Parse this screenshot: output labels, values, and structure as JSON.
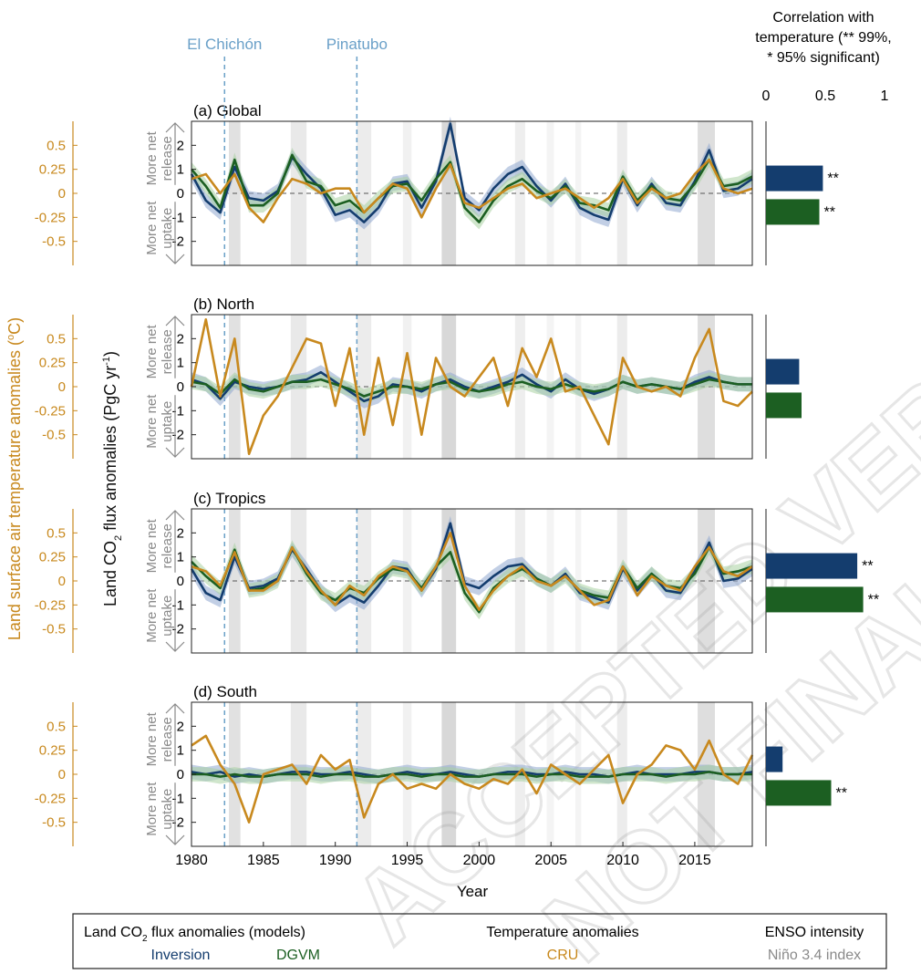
{
  "events": [
    {
      "name": "El Chichón",
      "year": 1982.3
    },
    {
      "name": "Pinatubo",
      "year": 1991.5
    }
  ],
  "watermark": [
    "ACCEPTED VERSION",
    "NOT FINAL"
  ],
  "axes": {
    "left_label": "Land surface air temperature anomalies (°C)",
    "left_label_main": "Land surface air temperature anomalies (",
    "left_label_unit": "C)",
    "left_label_deg": "o",
    "flux_label_a": "Land CO",
    "flux_label_sub": "2",
    "flux_label_b": " flux anomalies (PgC yr",
    "flux_label_sup": "-1",
    "flux_label_c": ")",
    "release_lines": [
      "More net",
      "release"
    ],
    "uptake_lines": [
      "More net",
      "uptake"
    ],
    "xlabel": "Year",
    "x_ticks": [
      1980,
      1985,
      1990,
      1995,
      2000,
      2005,
      2010,
      2015
    ],
    "xlim": [
      1980,
      2019
    ],
    "flux_ylim": [
      -3,
      3
    ],
    "flux_ticks": [
      2,
      1,
      0,
      -1,
      -2
    ],
    "temp_ticks": [
      "0.5",
      "0.25",
      "0",
      "-0.25",
      "-0.5"
    ],
    "temp_tick_values": [
      0.5,
      0.25,
      0,
      -0.25,
      -0.5
    ],
    "temp_ylim": [
      -0.75,
      0.75
    ]
  },
  "correlation": {
    "title_lines": [
      "Correlation with",
      "temperature (** 99%,",
      "* 95% significant)"
    ],
    "ticks": [
      "0",
      "0.5",
      "1"
    ],
    "tick_values": [
      0,
      0.5,
      1
    ],
    "xlim": [
      0,
      1
    ]
  },
  "enso_bands": [
    [
      1982.6,
      1983.4,
      0.55
    ],
    [
      1986.9,
      1988.0,
      0.4
    ],
    [
      1991.5,
      1992.5,
      0.35
    ],
    [
      1994.7,
      1995.3,
      0.25
    ],
    [
      1997.4,
      1998.4,
      0.7
    ],
    [
      2002.5,
      2003.2,
      0.3
    ],
    [
      2004.7,
      2005.2,
      0.2
    ],
    [
      2006.7,
      2007.1,
      0.2
    ],
    [
      2009.6,
      2010.3,
      0.35
    ],
    [
      2015.2,
      2016.4,
      0.6
    ]
  ],
  "chart_data": [
    {
      "type": "line",
      "panel_label": "(a) Global",
      "x": [
        1980,
        1981,
        1982,
        1983,
        1984,
        1985,
        1986,
        1987,
        1988,
        1989,
        1990,
        1991,
        1992,
        1993,
        1994,
        1995,
        1996,
        1997,
        1998,
        1999,
        2000,
        2001,
        2002,
        2003,
        2004,
        2005,
        2006,
        2007,
        2008,
        2009,
        2010,
        2011,
        2012,
        2013,
        2014,
        2015,
        2016,
        2017,
        2018,
        2019
      ],
      "series": [
        {
          "name": "Inversion",
          "values": [
            0.8,
            -0.3,
            -0.8,
            1.1,
            -0.2,
            -0.3,
            0.1,
            1.5,
            0.8,
            0.2,
            -0.9,
            -0.7,
            -1.2,
            -0.6,
            0.4,
            0.5,
            -0.6,
            0.5,
            2.9,
            -0.2,
            -0.7,
            0.2,
            0.8,
            1.1,
            0.3,
            -0.3,
            0.4,
            -0.6,
            -0.9,
            -1.1,
            0.6,
            -0.5,
            0.4,
            -0.4,
            -0.5,
            0.5,
            1.8,
            0.1,
            0.2,
            0.6
          ]
        },
        {
          "name": "DGVM",
          "values": [
            1.0,
            0.3,
            -0.6,
            1.4,
            -0.5,
            -0.5,
            0.0,
            1.6,
            0.5,
            0.3,
            -0.5,
            -0.3,
            -0.8,
            -0.2,
            0.3,
            0.4,
            -0.3,
            0.6,
            1.3,
            -0.6,
            -1.2,
            -0.3,
            0.3,
            0.6,
            0.1,
            -0.2,
            0.3,
            -0.4,
            -0.5,
            -0.7,
            0.7,
            -0.3,
            0.3,
            -0.2,
            -0.3,
            0.4,
            1.4,
            0.3,
            0.4,
            0.7
          ]
        },
        {
          "name": "CRU",
          "values": [
            0.15,
            0.2,
            0.0,
            0.2,
            -0.15,
            -0.3,
            -0.05,
            0.15,
            0.1,
            0.0,
            0.05,
            0.05,
            -0.2,
            -0.05,
            0.1,
            0.05,
            -0.25,
            0.05,
            0.3,
            -0.1,
            -0.15,
            -0.05,
            0.05,
            0.1,
            -0.05,
            0.0,
            0.05,
            -0.05,
            -0.15,
            -0.05,
            0.15,
            -0.1,
            0.05,
            -0.05,
            0.0,
            0.2,
            0.35,
            0.05,
            0.0,
            0.05
          ]
        }
      ],
      "correlation_values": [
        0.48,
        0.45
      ],
      "correlation_sig": [
        "**",
        "**"
      ]
    },
    {
      "type": "line",
      "panel_label": "(b) North",
      "x": [
        1980,
        1981,
        1982,
        1983,
        1984,
        1985,
        1986,
        1987,
        1988,
        1989,
        1990,
        1991,
        1992,
        1993,
        1994,
        1995,
        1996,
        1997,
        1998,
        1999,
        2000,
        2001,
        2002,
        2003,
        2004,
        2005,
        2006,
        2007,
        2008,
        2009,
        2010,
        2011,
        2012,
        2013,
        2014,
        2015,
        2016,
        2017,
        2018,
        2019
      ],
      "series": [
        {
          "name": "Inversion",
          "values": [
            0.3,
            0.1,
            -0.5,
            0.2,
            0.0,
            -0.1,
            0.0,
            0.2,
            0.3,
            0.6,
            0.2,
            -0.2,
            -0.6,
            -0.4,
            0.1,
            0.0,
            -0.2,
            0.1,
            0.3,
            0.0,
            -0.2,
            0.0,
            0.2,
            0.5,
            0.1,
            -0.2,
            0.3,
            -0.1,
            -0.3,
            -0.1,
            0.2,
            0.0,
            0.1,
            0.0,
            -0.1,
            0.2,
            0.4,
            0.2,
            0.1,
            0.1
          ]
        },
        {
          "name": "DGVM",
          "values": [
            0.2,
            0.1,
            -0.3,
            0.3,
            -0.1,
            -0.2,
            0.0,
            0.2,
            0.2,
            0.3,
            0.1,
            -0.1,
            -0.4,
            -0.2,
            0.0,
            0.0,
            -0.1,
            0.1,
            0.2,
            -0.1,
            -0.2,
            -0.1,
            0.1,
            0.2,
            0.0,
            -0.1,
            0.1,
            -0.1,
            -0.2,
            -0.1,
            0.2,
            0.0,
            0.1,
            0.0,
            -0.1,
            0.1,
            0.3,
            0.2,
            0.1,
            0.1
          ]
        },
        {
          "name": "CRU",
          "values": [
            0.0,
            0.7,
            -0.1,
            0.5,
            -0.7,
            -0.3,
            -0.1,
            0.2,
            0.5,
            0.45,
            -0.2,
            0.4,
            -0.5,
            0.3,
            -0.4,
            0.35,
            -0.5,
            0.3,
            0.0,
            -0.1,
            0.1,
            0.3,
            -0.2,
            0.4,
            0.1,
            0.5,
            -0.05,
            0.0,
            -0.3,
            -0.6,
            0.3,
            0.0,
            -0.05,
            0.0,
            -0.1,
            0.3,
            0.6,
            -0.15,
            -0.2,
            -0.05
          ]
        }
      ],
      "correlation_values": [
        0.28,
        0.3
      ],
      "correlation_sig": [
        "",
        ""
      ]
    },
    {
      "type": "line",
      "panel_label": "(c) Tropics",
      "x": [
        1980,
        1981,
        1982,
        1983,
        1984,
        1985,
        1986,
        1987,
        1988,
        1989,
        1990,
        1991,
        1992,
        1993,
        1994,
        1995,
        1996,
        1997,
        1998,
        1999,
        2000,
        2001,
        2002,
        2003,
        2004,
        2005,
        2006,
        2007,
        2008,
        2009,
        2010,
        2011,
        2012,
        2013,
        2014,
        2015,
        2016,
        2017,
        2018,
        2019
      ],
      "series": [
        {
          "name": "Inversion",
          "values": [
            0.5,
            -0.5,
            -0.8,
            1.0,
            -0.3,
            -0.2,
            0.1,
            1.3,
            0.5,
            -0.4,
            -1.0,
            -0.6,
            -0.9,
            -0.2,
            0.6,
            0.5,
            -0.4,
            0.5,
            2.4,
            -0.1,
            -0.3,
            0.2,
            0.6,
            0.7,
            0.1,
            -0.2,
            0.3,
            -0.5,
            -0.7,
            -0.9,
            0.5,
            -0.4,
            0.3,
            -0.4,
            -0.5,
            0.4,
            1.6,
            0.0,
            0.1,
            0.5
          ]
        },
        {
          "name": "DGVM",
          "values": [
            0.8,
            0.2,
            -0.3,
            1.3,
            -0.4,
            -0.3,
            0.0,
            1.4,
            0.3,
            -0.5,
            -0.8,
            -0.3,
            -0.5,
            0.1,
            0.5,
            0.4,
            -0.3,
            0.6,
            1.2,
            -0.5,
            -1.3,
            -0.3,
            0.2,
            0.5,
            0.1,
            -0.2,
            0.2,
            -0.4,
            -0.6,
            -0.7,
            0.6,
            -0.3,
            0.3,
            -0.2,
            -0.3,
            0.3,
            1.4,
            0.3,
            0.4,
            0.6
          ]
        },
        {
          "name": "CRU",
          "values": [
            0.15,
            0.1,
            -0.05,
            0.3,
            -0.1,
            -0.1,
            0.0,
            0.35,
            0.1,
            -0.1,
            -0.25,
            -0.05,
            -0.15,
            0.05,
            0.15,
            0.1,
            -0.1,
            0.15,
            0.5,
            -0.05,
            -0.3,
            -0.1,
            0.05,
            0.15,
            0.0,
            -0.05,
            0.05,
            -0.1,
            -0.25,
            -0.2,
            0.15,
            -0.15,
            0.05,
            -0.05,
            -0.1,
            0.15,
            0.35,
            0.1,
            0.05,
            0.15
          ]
        }
      ],
      "correlation_values": [
        0.77,
        0.82
      ],
      "correlation_sig": [
        "**",
        "**"
      ]
    },
    {
      "type": "line",
      "panel_label": "(d) South",
      "x": [
        1980,
        1981,
        1982,
        1983,
        1984,
        1985,
        1986,
        1987,
        1988,
        1989,
        1990,
        1991,
        1992,
        1993,
        1994,
        1995,
        1996,
        1997,
        1998,
        1999,
        2000,
        2001,
        2002,
        2003,
        2004,
        2005,
        2006,
        2007,
        2008,
        2009,
        2010,
        2011,
        2012,
        2013,
        2014,
        2015,
        2016,
        2017,
        2018,
        2019
      ],
      "series": [
        {
          "name": "Inversion",
          "values": [
            0.1,
            0.0,
            0.1,
            -0.1,
            0.0,
            -0.1,
            0.0,
            0.1,
            0.1,
            0.0,
            0.0,
            0.1,
            0.0,
            -0.1,
            0.0,
            0.1,
            0.0,
            0.0,
            0.1,
            0.0,
            -0.1,
            0.0,
            0.1,
            0.1,
            0.0,
            0.0,
            0.1,
            0.0,
            0.0,
            -0.1,
            0.0,
            0.1,
            0.0,
            0.0,
            0.0,
            0.1,
            0.1,
            0.0,
            0.0,
            0.1
          ]
        },
        {
          "name": "DGVM",
          "values": [
            0.0,
            0.0,
            -0.1,
            0.0,
            -0.1,
            -0.1,
            0.0,
            0.0,
            0.0,
            -0.1,
            0.0,
            0.0,
            -0.1,
            -0.1,
            0.0,
            0.0,
            -0.1,
            0.0,
            0.0,
            -0.1,
            -0.1,
            0.0,
            0.0,
            0.0,
            -0.1,
            0.0,
            0.0,
            -0.1,
            -0.1,
            -0.1,
            0.0,
            0.0,
            0.0,
            -0.1,
            0.0,
            0.0,
            0.1,
            0.0,
            0.0,
            0.0
          ]
        },
        {
          "name": "CRU",
          "values": [
            0.3,
            0.4,
            0.1,
            -0.1,
            -0.5,
            0.0,
            0.05,
            0.1,
            -0.1,
            0.2,
            0.05,
            0.15,
            -0.45,
            -0.1,
            0.0,
            -0.15,
            -0.1,
            -0.15,
            0.0,
            -0.1,
            -0.15,
            -0.05,
            -0.1,
            0.05,
            -0.2,
            0.1,
            0.0,
            -0.1,
            0.05,
            0.2,
            -0.3,
            0.0,
            0.1,
            0.3,
            0.25,
            0.05,
            0.35,
            0.0,
            -0.1,
            0.2
          ]
        }
      ],
      "correlation_values": [
        0.14,
        0.55
      ],
      "correlation_sig": [
        "",
        "**"
      ]
    }
  ],
  "legend": {
    "model_title_a": "Land CO",
    "model_title_sub": "2",
    "model_title_b": " flux anomalies (models)",
    "inversion": "Inversion",
    "dgvm": "DGVM",
    "temp_title": "Temperature anomalies",
    "cru": "CRU",
    "enso_title": "ENSO intensity",
    "enso_index": "Niño 3.4 index"
  },
  "colors": {
    "inversion": "#143d6e",
    "dgvm": "#1c5f22",
    "cru": "#c8891e",
    "event": "#6aa0c8",
    "uncertainty_inv": "#8fa8cf",
    "uncertainty_dgvm": "#a9d1a3",
    "grey_text": "#8a8a8a"
  }
}
